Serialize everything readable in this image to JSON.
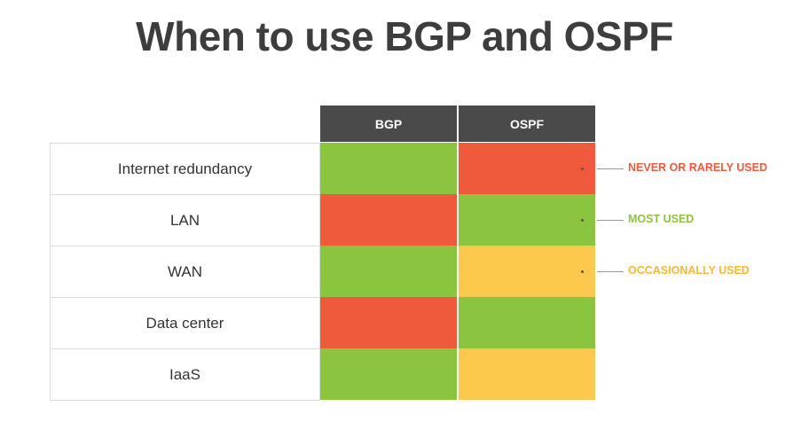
{
  "title": "When to use BGP and OSPF",
  "chart_data": {
    "type": "table",
    "columns": [
      "BGP",
      "OSPF"
    ],
    "rows": [
      {
        "label": "Internet redundancy",
        "values": [
          "most",
          "never"
        ]
      },
      {
        "label": "LAN",
        "values": [
          "never",
          "most"
        ]
      },
      {
        "label": "WAN",
        "values": [
          "most",
          "occasional"
        ]
      },
      {
        "label": "Data center",
        "values": [
          "never",
          "most"
        ]
      },
      {
        "label": "IaaS",
        "values": [
          "most",
          "occasional"
        ]
      }
    ],
    "legend": [
      {
        "key": "never",
        "label": "NEVER OR RARELY USED",
        "color": "#f05a3c"
      },
      {
        "key": "most",
        "label": "MOST USED",
        "color": "#8bc53f"
      },
      {
        "key": "occasional",
        "label": "OCCASIONALLY USED",
        "color": "#fdc94d"
      }
    ]
  },
  "colors": {
    "header_bg": "#4a4a4a",
    "title": "#3d3d3d"
  }
}
